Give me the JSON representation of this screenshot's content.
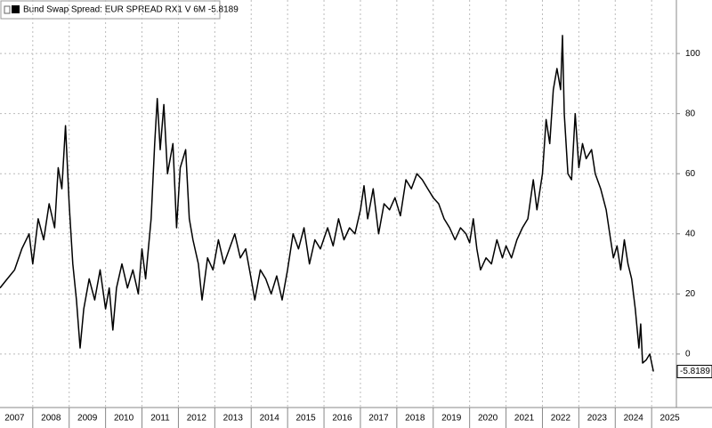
{
  "chart_data": {
    "type": "line",
    "x": [
      2007.1,
      2007.3,
      2007.5,
      2007.7,
      2007.9,
      2008.0,
      2008.15,
      2008.3,
      2008.45,
      2008.6,
      2008.7,
      2008.8,
      2008.9,
      2009.0,
      2009.1,
      2009.2,
      2009.3,
      2009.4,
      2009.55,
      2009.7,
      2009.85,
      2010.0,
      2010.1,
      2010.2,
      2010.3,
      2010.45,
      2010.6,
      2010.75,
      2010.9,
      2011.0,
      2011.1,
      2011.25,
      2011.35,
      2011.42,
      2011.5,
      2011.6,
      2011.7,
      2011.85,
      2011.95,
      2012.05,
      2012.2,
      2012.3,
      2012.4,
      2012.55,
      2012.65,
      2012.8,
      2012.95,
      2013.1,
      2013.25,
      2013.4,
      2013.55,
      2013.7,
      2013.85,
      2014.0,
      2014.1,
      2014.25,
      2014.4,
      2014.55,
      2014.7,
      2014.85,
      2015.0,
      2015.15,
      2015.3,
      2015.45,
      2015.6,
      2015.75,
      2015.9,
      2016.1,
      2016.25,
      2016.4,
      2016.55,
      2016.7,
      2016.85,
      2017.0,
      2017.1,
      2017.2,
      2017.35,
      2017.5,
      2017.65,
      2017.8,
      2017.95,
      2018.1,
      2018.25,
      2018.4,
      2018.55,
      2018.7,
      2018.85,
      2019.0,
      2019.15,
      2019.3,
      2019.45,
      2019.6,
      2019.75,
      2019.9,
      2020.0,
      2020.1,
      2020.2,
      2020.3,
      2020.45,
      2020.6,
      2020.75,
      2020.9,
      2021.0,
      2021.15,
      2021.3,
      2021.45,
      2021.6,
      2021.75,
      2021.85,
      2022.0,
      2022.1,
      2022.2,
      2022.3,
      2022.4,
      2022.5,
      2022.55,
      2022.6,
      2022.7,
      2022.8,
      2022.9,
      2023.0,
      2023.1,
      2023.2,
      2023.35,
      2023.45,
      2023.6,
      2023.75,
      2023.85,
      2023.95,
      2024.05,
      2024.15,
      2024.25,
      2024.35,
      2024.45,
      2024.55,
      2024.65,
      2024.7,
      2024.75,
      2024.85,
      2024.95,
      2025.05
    ],
    "series": [
      {
        "name": "Bund Swap Spread: EUR SPREAD RX1 V 6M -5.8189",
        "color": "#000000",
        "values": [
          22,
          25,
          28,
          35,
          40,
          30,
          45,
          38,
          50,
          42,
          62,
          55,
          76,
          50,
          30,
          18,
          2,
          15,
          25,
          18,
          28,
          15,
          22,
          8,
          22,
          30,
          22,
          28,
          20,
          35,
          25,
          45,
          70,
          85,
          68,
          83,
          60,
          70,
          42,
          62,
          68,
          45,
          38,
          30,
          18,
          32,
          28,
          38,
          30,
          35,
          40,
          32,
          35,
          25,
          18,
          28,
          25,
          20,
          26,
          18,
          28,
          40,
          35,
          42,
          30,
          38,
          35,
          42,
          36,
          45,
          38,
          42,
          40,
          48,
          56,
          45,
          55,
          40,
          50,
          48,
          52,
          46,
          58,
          55,
          60,
          58,
          55,
          52,
          50,
          45,
          42,
          38,
          42,
          40,
          37,
          45,
          35,
          28,
          32,
          30,
          38,
          32,
          36,
          32,
          38,
          42,
          45,
          58,
          48,
          60,
          78,
          70,
          88,
          95,
          88,
          106,
          80,
          60,
          58,
          80,
          62,
          70,
          65,
          68,
          60,
          55,
          48,
          40,
          32,
          36,
          28,
          38,
          30,
          25,
          15,
          2,
          10,
          -3,
          -2,
          0,
          -5.8189
        ]
      }
    ],
    "xlim": [
      2007.1,
      2025.68
    ],
    "xticks": [
      2007,
      2008,
      2009,
      2010,
      2011,
      2012,
      2013,
      2014,
      2015,
      2016,
      2017,
      2018,
      2019,
      2020,
      2021,
      2022,
      2023,
      2024,
      2025
    ],
    "ylim": [
      -17.8,
      117.8
    ],
    "yticks": [
      0,
      20,
      40,
      60,
      80,
      100
    ],
    "grid": true
  }
}
